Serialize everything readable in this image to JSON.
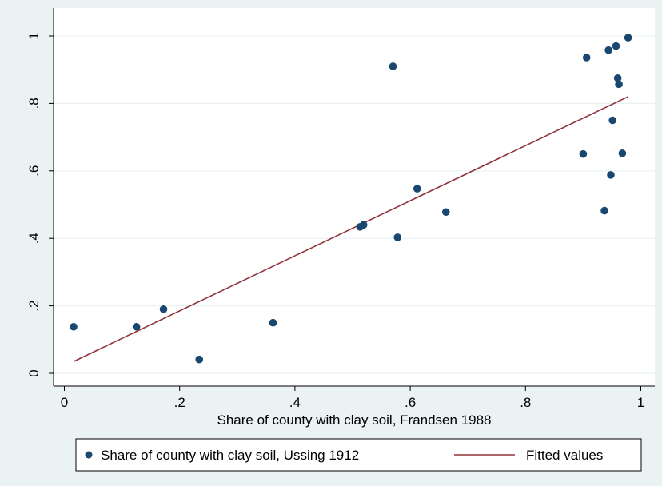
{
  "chart_data": {
    "type": "scatter",
    "title": "",
    "xlabel": "Share of county with clay soil, Frandsen 1988",
    "ylabel": "",
    "xlim": [
      0,
      1
    ],
    "ylim": [
      0,
      1
    ],
    "x_ticks": [
      0,
      0.2,
      0.4,
      0.6,
      0.8,
      1
    ],
    "x_tick_labels": [
      "0",
      ".2",
      ".4",
      ".6",
      ".8",
      "1"
    ],
    "y_ticks": [
      0,
      0.2,
      0.4,
      0.6,
      0.8,
      1
    ],
    "y_tick_labels": [
      "0",
      ".2",
      ".4",
      ".6",
      ".8",
      "1"
    ],
    "grid": "horizontal",
    "legend_position": "bottom",
    "series": [
      {
        "name": "Share of county with clay soil, Ussing 1912",
        "kind": "scatter",
        "color": "#1a476f",
        "points": [
          [
            0.016,
            0.138
          ],
          [
            0.125,
            0.138
          ],
          [
            0.172,
            0.19
          ],
          [
            0.234,
            0.041
          ],
          [
            0.362,
            0.15
          ],
          [
            0.513,
            0.434
          ],
          [
            0.519,
            0.44
          ],
          [
            0.57,
            0.91
          ],
          [
            0.578,
            0.403
          ],
          [
            0.612,
            0.547
          ],
          [
            0.662,
            0.478
          ],
          [
            0.9,
            0.65
          ],
          [
            0.906,
            0.936
          ],
          [
            0.937,
            0.482
          ],
          [
            0.944,
            0.958
          ],
          [
            0.948,
            0.588
          ],
          [
            0.951,
            0.75
          ],
          [
            0.957,
            0.97
          ],
          [
            0.96,
            0.875
          ],
          [
            0.962,
            0.857
          ],
          [
            0.968,
            0.652
          ],
          [
            0.978,
            0.995
          ]
        ]
      },
      {
        "name": "Fitted values",
        "kind": "line",
        "color": "#90353b",
        "points": [
          [
            0.016,
            0.035
          ],
          [
            0.978,
            0.82
          ]
        ]
      }
    ]
  }
}
